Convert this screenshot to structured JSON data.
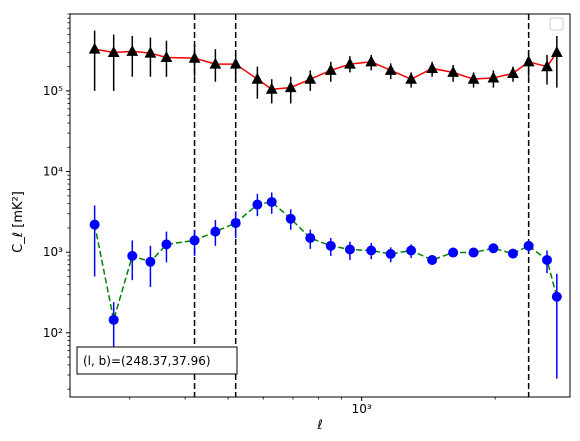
{
  "chart_data": {
    "type": "scatter",
    "xlabel": "ℓ",
    "ylabel": "C_ℓ [mK²]",
    "x_scale": "log",
    "y_scale": "log",
    "xlim": [
      220,
      2950
    ],
    "ylim": [
      16,
      900000
    ],
    "x_ticks": [
      {
        "value": 1000,
        "label": "10³"
      }
    ],
    "y_ticks": [
      {
        "value": 100,
        "label": "10²"
      },
      {
        "value": 1000,
        "label": "10³"
      },
      {
        "value": 10000,
        "label": "10⁴"
      },
      {
        "value": 100000,
        "label": "10⁵"
      }
    ],
    "annotation": "(l, b)=(248.37,37.96)",
    "annotation_position": "bottom-left",
    "legend": {
      "entries": [],
      "position": "top-right"
    },
    "vertical_lines": [
      420,
      520,
      2380
    ],
    "series": [
      {
        "marker": "triangle",
        "marker_color": "#000000",
        "line_color": "#ff0000",
        "line_style": "solid",
        "errorbar_color": "#000000",
        "points": [
          {
            "x": 250,
            "y": 330000,
            "lo": 100000,
            "hi": 560000
          },
          {
            "x": 276,
            "y": 300000,
            "lo": 100000,
            "hi": 500000
          },
          {
            "x": 304,
            "y": 310000,
            "lo": 150000,
            "hi": 480000
          },
          {
            "x": 334,
            "y": 295000,
            "lo": 150000,
            "hi": 460000
          },
          {
            "x": 363,
            "y": 260000,
            "lo": 150000,
            "hi": 420000
          },
          {
            "x": 420,
            "y": 255000,
            "lo": 150000,
            "hi": 380000
          },
          {
            "x": 468,
            "y": 215000,
            "lo": 130000,
            "hi": 330000
          },
          {
            "x": 520,
            "y": 215000,
            "lo": 130000,
            "hi": 320000
          },
          {
            "x": 582,
            "y": 140000,
            "lo": 80000,
            "hi": 200000
          },
          {
            "x": 627,
            "y": 105000,
            "lo": 70000,
            "hi": 140000
          },
          {
            "x": 692,
            "y": 110000,
            "lo": 70000,
            "hi": 150000
          },
          {
            "x": 766,
            "y": 140000,
            "lo": 100000,
            "hi": 180000
          },
          {
            "x": 852,
            "y": 180000,
            "lo": 130000,
            "hi": 230000
          },
          {
            "x": 941,
            "y": 215000,
            "lo": 170000,
            "hi": 270000
          },
          {
            "x": 1051,
            "y": 230000,
            "lo": 180000,
            "hi": 280000
          },
          {
            "x": 1163,
            "y": 180000,
            "lo": 140000,
            "hi": 220000
          },
          {
            "x": 1293,
            "y": 140000,
            "lo": 110000,
            "hi": 170000
          },
          {
            "x": 1442,
            "y": 190000,
            "lo": 150000,
            "hi": 230000
          },
          {
            "x": 1608,
            "y": 170000,
            "lo": 130000,
            "hi": 210000
          },
          {
            "x": 1788,
            "y": 140000,
            "lo": 110000,
            "hi": 170000
          },
          {
            "x": 1982,
            "y": 145000,
            "lo": 110000,
            "hi": 180000
          },
          {
            "x": 2194,
            "y": 165000,
            "lo": 130000,
            "hi": 200000
          },
          {
            "x": 2380,
            "y": 230000,
            "lo": 150000,
            "hi": 320000
          },
          {
            "x": 2618,
            "y": 200000,
            "lo": 120000,
            "hi": 280000
          },
          {
            "x": 2755,
            "y": 300000,
            "lo": 110000,
            "hi": 480000
          }
        ]
      },
      {
        "marker": "circle",
        "marker_color": "#0000ff",
        "line_color": "#008000",
        "line_style": "dashed",
        "errorbar_color": "#0000ff",
        "points": [
          {
            "x": 250,
            "y": 2200,
            "lo": 500,
            "hi": 3800
          },
          {
            "x": 276,
            "y": 145,
            "lo": 60,
            "hi": 240
          },
          {
            "x": 304,
            "y": 900,
            "lo": 450,
            "hi": 1400
          },
          {
            "x": 334,
            "y": 760,
            "lo": 370,
            "hi": 1200
          },
          {
            "x": 363,
            "y": 1250,
            "lo": 750,
            "hi": 1800
          },
          {
            "x": 420,
            "y": 1400,
            "lo": 900,
            "hi": 1900
          },
          {
            "x": 468,
            "y": 1800,
            "lo": 1200,
            "hi": 2500
          },
          {
            "x": 520,
            "y": 2300,
            "lo": 1500,
            "hi": 3200
          },
          {
            "x": 582,
            "y": 3900,
            "lo": 2800,
            "hi": 5300
          },
          {
            "x": 627,
            "y": 4200,
            "lo": 3000,
            "hi": 5500
          },
          {
            "x": 692,
            "y": 2600,
            "lo": 1900,
            "hi": 3400
          },
          {
            "x": 766,
            "y": 1500,
            "lo": 1100,
            "hi": 1900
          },
          {
            "x": 852,
            "y": 1200,
            "lo": 900,
            "hi": 1500
          },
          {
            "x": 941,
            "y": 1080,
            "lo": 800,
            "hi": 1350
          },
          {
            "x": 1051,
            "y": 1050,
            "lo": 820,
            "hi": 1300
          },
          {
            "x": 1163,
            "y": 950,
            "lo": 750,
            "hi": 1150
          },
          {
            "x": 1293,
            "y": 1050,
            "lo": 850,
            "hi": 1250
          },
          {
            "x": 1442,
            "y": 800,
            "lo": 700,
            "hi": 900
          },
          {
            "x": 1608,
            "y": 990,
            "lo": 880,
            "hi": 1100
          },
          {
            "x": 1788,
            "y": 990,
            "lo": 880,
            "hi": 1100
          },
          {
            "x": 1982,
            "y": 1120,
            "lo": 990,
            "hi": 1250
          },
          {
            "x": 2194,
            "y": 960,
            "lo": 850,
            "hi": 1070
          },
          {
            "x": 2380,
            "y": 1200,
            "lo": 1000,
            "hi": 1400
          },
          {
            "x": 2618,
            "y": 800,
            "lo": 550,
            "hi": 1050
          },
          {
            "x": 2755,
            "y": 280,
            "lo": 27,
            "hi": 540
          }
        ]
      }
    ]
  }
}
